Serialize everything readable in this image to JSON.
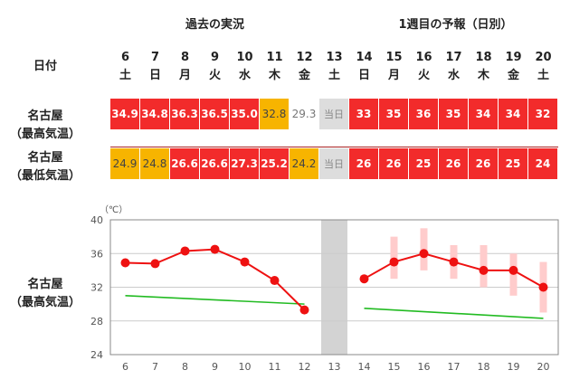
{
  "headers": {
    "past": "過去の実況",
    "forecast": "1週目の予報（日別）",
    "date_label": "日付"
  },
  "days": [
    {
      "num": "6",
      "wd": "土"
    },
    {
      "num": "7",
      "wd": "日"
    },
    {
      "num": "8",
      "wd": "月"
    },
    {
      "num": "9",
      "wd": "火"
    },
    {
      "num": "10",
      "wd": "水"
    },
    {
      "num": "11",
      "wd": "木"
    },
    {
      "num": "12",
      "wd": "金"
    },
    {
      "num": "13",
      "wd": "土"
    },
    {
      "num": "14",
      "wd": "日"
    },
    {
      "num": "15",
      "wd": "月"
    },
    {
      "num": "16",
      "wd": "火"
    },
    {
      "num": "17",
      "wd": "水"
    },
    {
      "num": "18",
      "wd": "木"
    },
    {
      "num": "19",
      "wd": "金"
    },
    {
      "num": "20",
      "wd": "土"
    }
  ],
  "rows": [
    {
      "label1": "名古屋",
      "label2": "（最高気温）",
      "cells": [
        {
          "text": "34.9",
          "level": "hot"
        },
        {
          "text": "34.8",
          "level": "hot"
        },
        {
          "text": "36.3",
          "level": "hot"
        },
        {
          "text": "36.5",
          "level": "hot"
        },
        {
          "text": "35.0",
          "level": "hot"
        },
        {
          "text": "32.8",
          "level": "warm"
        },
        {
          "text": "29.3",
          "level": "mild"
        },
        {
          "text": "当日",
          "level": "today"
        },
        {
          "text": "33",
          "level": "hot"
        },
        {
          "text": "35",
          "level": "hot"
        },
        {
          "text": "36",
          "level": "hot"
        },
        {
          "text": "35",
          "level": "hot"
        },
        {
          "text": "34",
          "level": "hot"
        },
        {
          "text": "34",
          "level": "hot"
        },
        {
          "text": "32",
          "level": "hot"
        }
      ]
    },
    {
      "label1": "名古屋",
      "label2": "（最低気温）",
      "cells": [
        {
          "text": "24.9",
          "level": "warm"
        },
        {
          "text": "24.8",
          "level": "warm"
        },
        {
          "text": "26.6",
          "level": "hot"
        },
        {
          "text": "26.6",
          "level": "hot"
        },
        {
          "text": "27.3",
          "level": "hot"
        },
        {
          "text": "25.2",
          "level": "hot"
        },
        {
          "text": "24.2",
          "level": "warm"
        },
        {
          "text": "当日",
          "level": "today"
        },
        {
          "text": "26",
          "level": "hot"
        },
        {
          "text": "26",
          "level": "hot"
        },
        {
          "text": "25",
          "level": "hot"
        },
        {
          "text": "26",
          "level": "hot"
        },
        {
          "text": "26",
          "level": "hot"
        },
        {
          "text": "25",
          "level": "hot"
        },
        {
          "text": "24",
          "level": "hot"
        }
      ]
    }
  ],
  "chart_label": {
    "line1": "名古屋",
    "line2": "（最高気温）"
  },
  "colors": {
    "hot": "#f22b2b",
    "warm": "#f7b400",
    "mild": "#ffffff",
    "today": "#dddddd",
    "normal_line": "#22bb22",
    "range_band": "#ffcccc"
  },
  "chart_data": {
    "type": "line",
    "unit": "（℃）",
    "ylim": [
      24,
      40
    ],
    "yticks": [
      "24",
      "28",
      "32",
      "36",
      "40"
    ],
    "x": [
      "6",
      "7",
      "8",
      "9",
      "10",
      "11",
      "12",
      "13",
      "14",
      "15",
      "16",
      "17",
      "18",
      "19",
      "20"
    ],
    "today": "13",
    "series": [
      {
        "key": "observed",
        "x": [
          "6",
          "7",
          "8",
          "9",
          "10",
          "11",
          "12"
        ],
        "values": [
          34.9,
          34.8,
          36.3,
          36.5,
          35.0,
          32.8,
          29.3
        ]
      },
      {
        "key": "forecast",
        "x": [
          "14",
          "15",
          "16",
          "17",
          "18",
          "19",
          "20"
        ],
        "values": [
          33,
          35,
          36,
          35,
          34,
          34,
          32
        ]
      },
      {
        "key": "normal",
        "x": [
          "6",
          "12"
        ],
        "values": [
          31.0,
          30.0
        ]
      },
      {
        "key": "normal_forecast",
        "x": [
          "14",
          "20"
        ],
        "values": [
          29.5,
          28.3
        ]
      }
    ],
    "ranges": [
      {
        "x": "15",
        "low": 33,
        "high": 38
      },
      {
        "x": "16",
        "low": 34,
        "high": 39
      },
      {
        "x": "17",
        "low": 33,
        "high": 37
      },
      {
        "x": "18",
        "low": 32,
        "high": 37
      },
      {
        "x": "19",
        "low": 31,
        "high": 36
      },
      {
        "x": "20",
        "low": 29,
        "high": 35
      }
    ]
  }
}
